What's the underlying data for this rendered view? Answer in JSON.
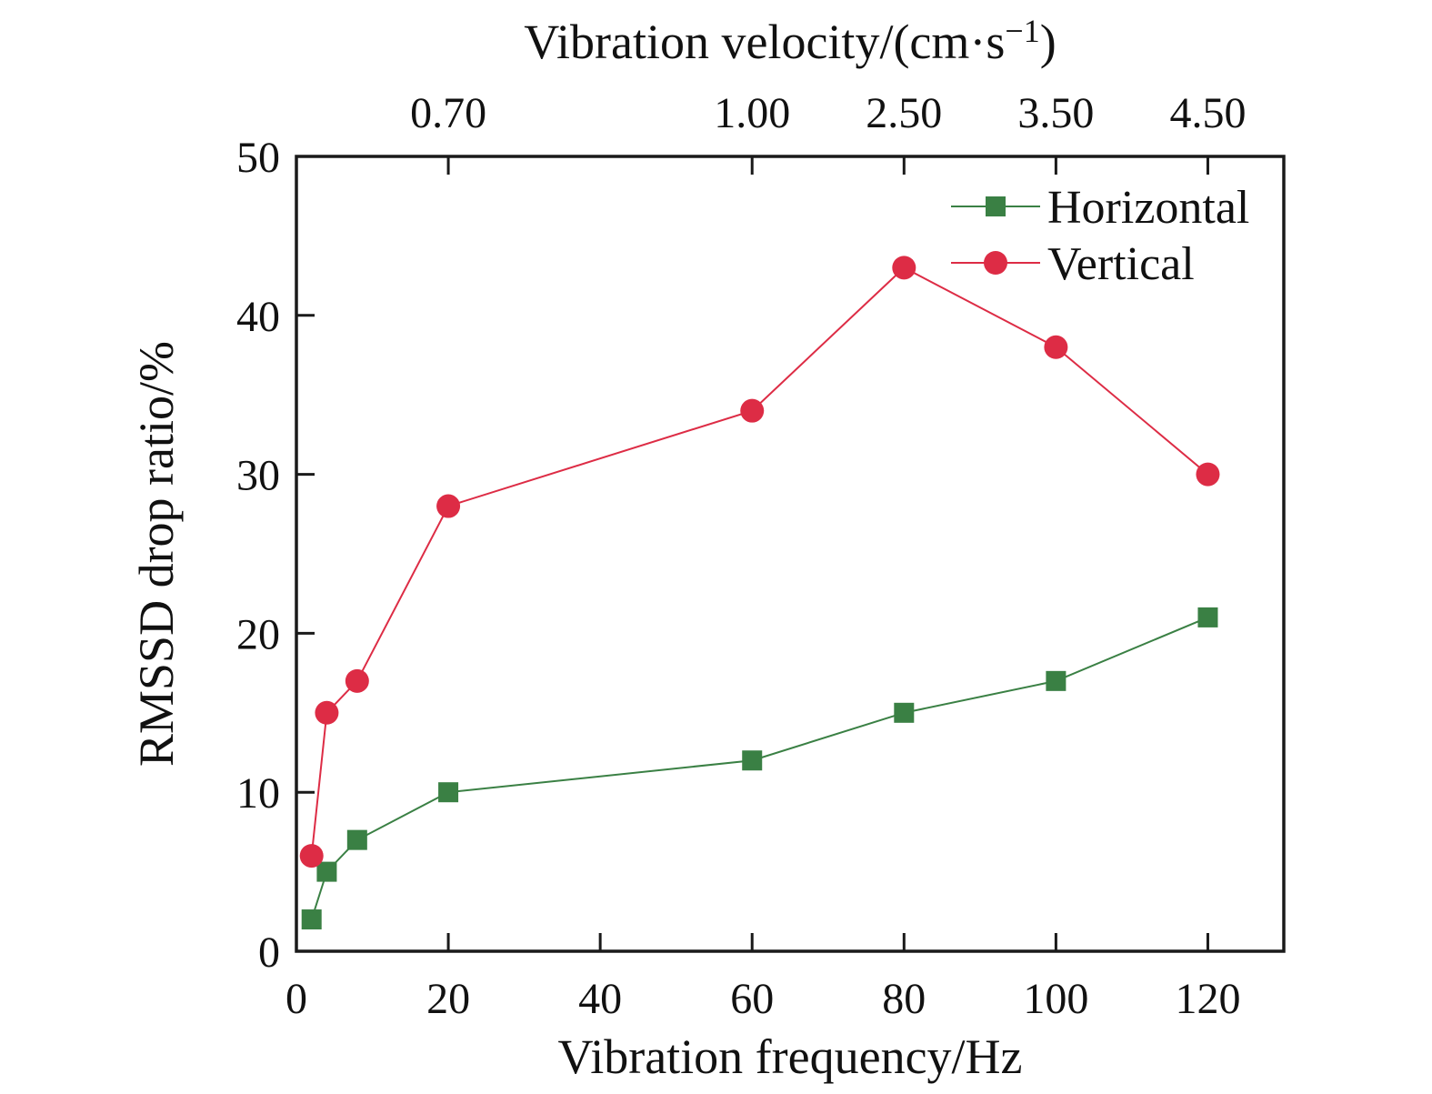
{
  "figure": {
    "background": "#ffffff",
    "text_color": "#111111",
    "frame_color": "#1a1a1a"
  },
  "chart_data": {
    "type": "line",
    "title": "",
    "grid": "off",
    "legend_position": "top-right-inside",
    "x_axis": {
      "label": "Vibration frequency/Hz",
      "range": [
        0,
        130
      ],
      "ticks": [
        0,
        20,
        40,
        60,
        80,
        100,
        120
      ]
    },
    "top_axis": {
      "label_prefix": "Vibration velocity/(cm·s",
      "label_sup": "−1",
      "label_suffix": ")",
      "ticks": [
        {
          "x": 20,
          "label": "0.70"
        },
        {
          "x": 60,
          "label": "1.00"
        },
        {
          "x": 80,
          "label": "2.50"
        },
        {
          "x": 100,
          "label": "3.50"
        },
        {
          "x": 120,
          "label": "4.50"
        }
      ]
    },
    "y_axis": {
      "label": "RMSSD drop ratio/%",
      "range": [
        0,
        50
      ],
      "ticks": [
        0,
        10,
        20,
        30,
        40,
        50
      ]
    },
    "series": [
      {
        "name": "Horizontal",
        "marker": "square",
        "color": "#3a8044",
        "x": [
          2,
          4,
          8,
          20,
          60,
          80,
          100,
          120
        ],
        "y": [
          2,
          5,
          7,
          10,
          12,
          15,
          17,
          21
        ]
      },
      {
        "name": "Vertical",
        "marker": "circle",
        "color": "#dd2c45",
        "x": [
          2,
          4,
          8,
          20,
          60,
          80,
          100,
          120
        ],
        "y": [
          6,
          15,
          17,
          28,
          34,
          43,
          38,
          30
        ]
      }
    ]
  }
}
